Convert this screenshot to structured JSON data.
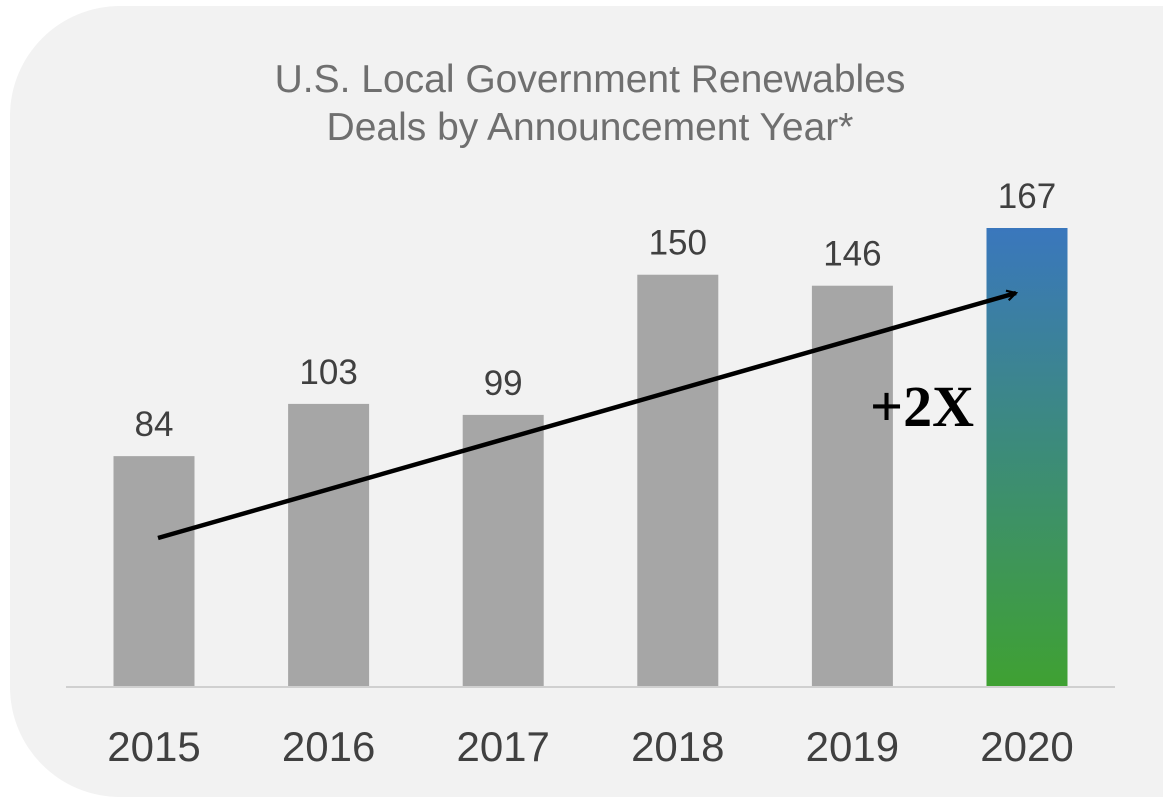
{
  "chart_data": {
    "type": "bar",
    "title": "U.S. Local Government Renewables Deals by Announcement Year*",
    "title_lines": [
      "U.S. Local Government Renewables",
      "Deals by Announcement Year*"
    ],
    "categories": [
      "2015",
      "2016",
      "2017",
      "2018",
      "2019",
      "2020"
    ],
    "values": [
      84,
      103,
      99,
      150,
      146,
      167
    ],
    "xlabel": "",
    "ylabel": "",
    "ylim": [
      0,
      167
    ],
    "grid": false,
    "legend": "none",
    "bar_color": "#a6a6a6",
    "highlight": {
      "category": "2020",
      "gradient_top": "#3a77bd",
      "gradient_bottom": "#3fa132"
    },
    "annotation": {
      "text": "+2X",
      "arrow_from_category": "2015",
      "arrow_to_category": "2020"
    }
  }
}
